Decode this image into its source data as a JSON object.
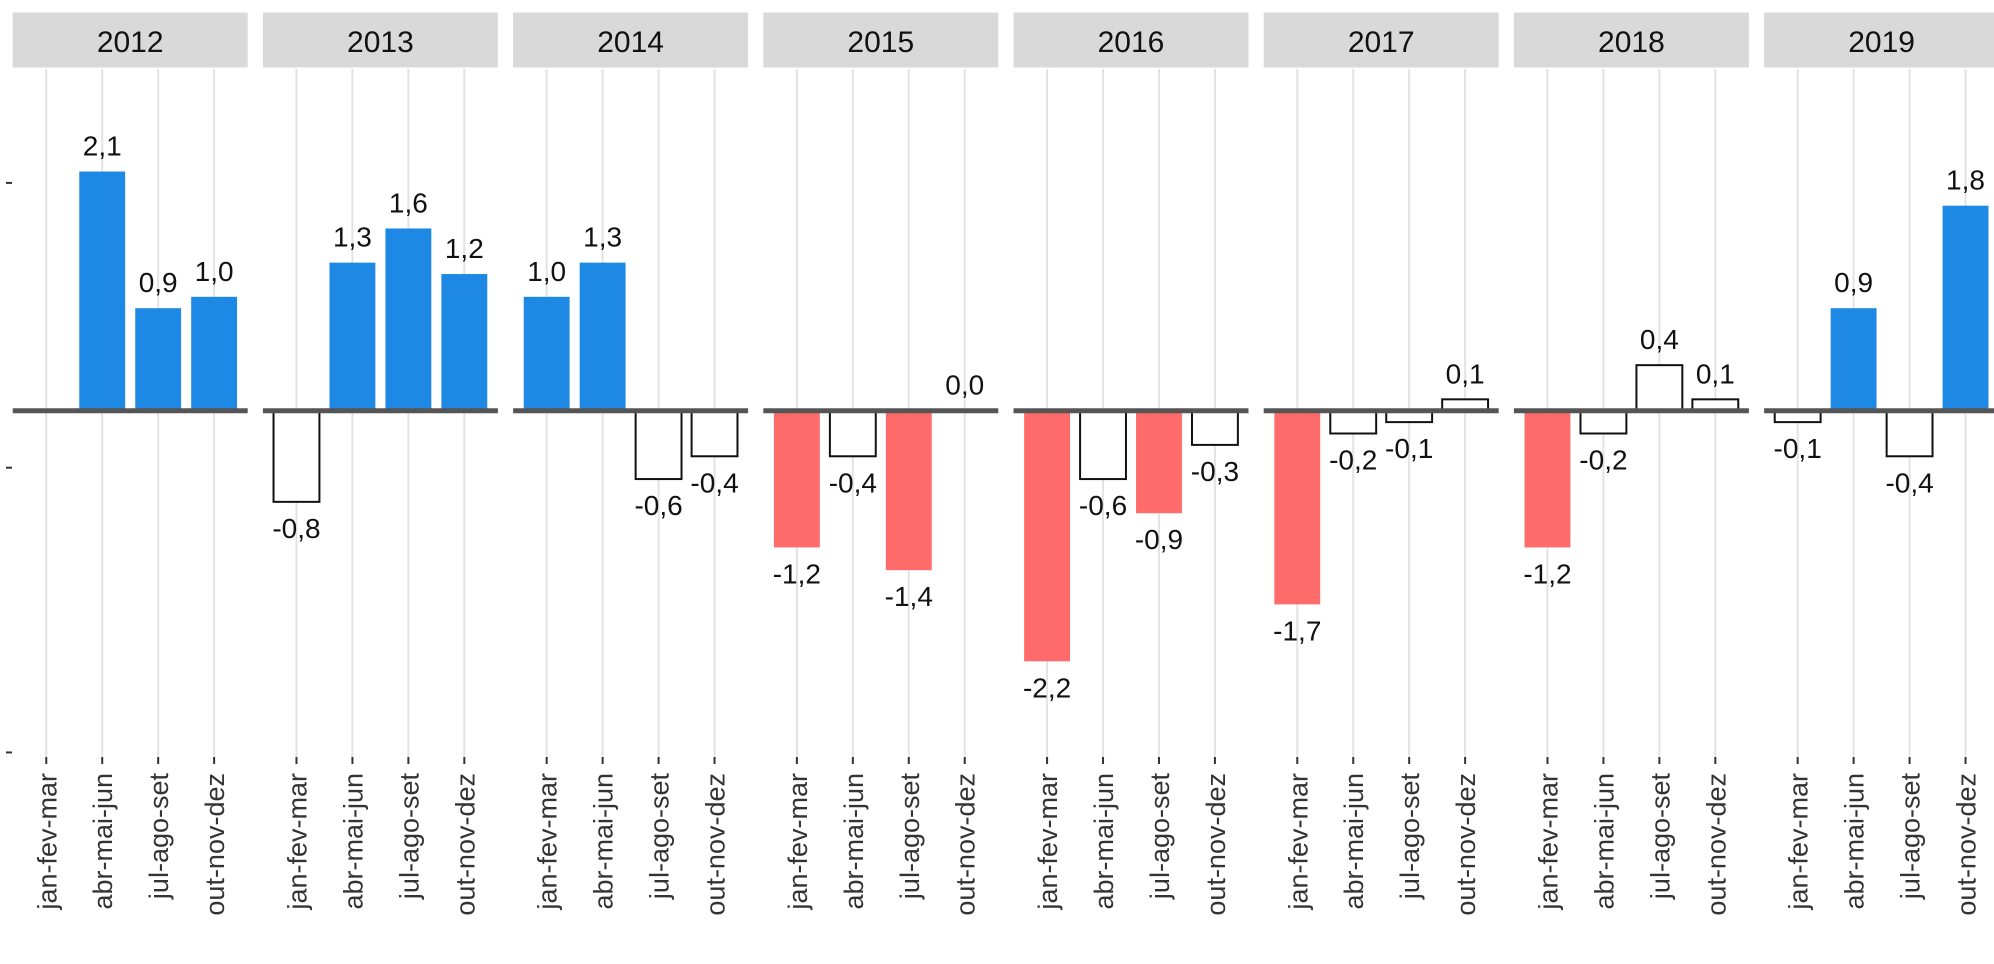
{
  "chart_data": {
    "type": "bar",
    "categories": [
      "jan-fev-mar",
      "abr-mai-jun",
      "jul-ago-set",
      "out-nov-dez"
    ],
    "ylim": [
      -3.04,
      3.0
    ],
    "yticks": [
      -3,
      -0.5,
      2
    ],
    "grid": true,
    "facets": [
      {
        "title": "2012",
        "values": [
          null,
          2.1,
          0.9,
          1.0
        ],
        "value_labels": [
          null,
          "2,1",
          "0,9",
          "1,0"
        ],
        "colors": [
          null,
          "#1e88e5",
          "#1e88e5",
          "#1e88e5"
        ]
      },
      {
        "title": "2013",
        "values": [
          -0.8,
          1.3,
          1.6,
          1.2
        ],
        "value_labels": [
          "-0,8",
          "1,3",
          "1,6",
          "1,2"
        ],
        "colors": [
          "#ffffff",
          "#1e88e5",
          "#1e88e5",
          "#1e88e5"
        ]
      },
      {
        "title": "2014",
        "values": [
          1.0,
          1.3,
          -0.6,
          -0.4
        ],
        "value_labels": [
          "1,0",
          "1,3",
          "-0,6",
          "-0,4"
        ],
        "colors": [
          "#1e88e5",
          "#1e88e5",
          "#ffffff",
          "#ffffff"
        ]
      },
      {
        "title": "2015",
        "values": [
          -1.2,
          -0.4,
          -1.4,
          0.0
        ],
        "value_labels": [
          "-1,2",
          "-0,4",
          "-1,4",
          "0,0"
        ],
        "colors": [
          "#ff6b6b",
          "#ffffff",
          "#ff6b6b",
          "#ffffff"
        ]
      },
      {
        "title": "2016",
        "values": [
          -2.2,
          -0.6,
          -0.9,
          -0.3
        ],
        "value_labels": [
          "-2,2",
          "-0,6",
          "-0,9",
          "-0,3"
        ],
        "colors": [
          "#ff6b6b",
          "#ffffff",
          "#ff6b6b",
          "#ffffff"
        ]
      },
      {
        "title": "2017",
        "values": [
          -1.7,
          -0.2,
          -0.1,
          0.1
        ],
        "value_labels": [
          "-1,7",
          "-0,2",
          "-0,1",
          "0,1"
        ],
        "colors": [
          "#ff6b6b",
          "#ffffff",
          "#ffffff",
          "#ffffff"
        ]
      },
      {
        "title": "2018",
        "values": [
          -1.2,
          -0.2,
          0.4,
          0.1
        ],
        "value_labels": [
          "-1,2",
          "-0,2",
          "0,4",
          "0,1"
        ],
        "colors": [
          "#ff6b6b",
          "#ffffff",
          "#ffffff",
          "#ffffff"
        ]
      },
      {
        "title": "2019",
        "values": [
          -0.1,
          0.9,
          -0.4,
          1.8
        ],
        "value_labels": [
          "-0,1",
          "0,9",
          "-0,4",
          "1,8"
        ],
        "colors": [
          "#ffffff",
          "#1e88e5",
          "#ffffff",
          "#1e88e5"
        ]
      }
    ]
  }
}
